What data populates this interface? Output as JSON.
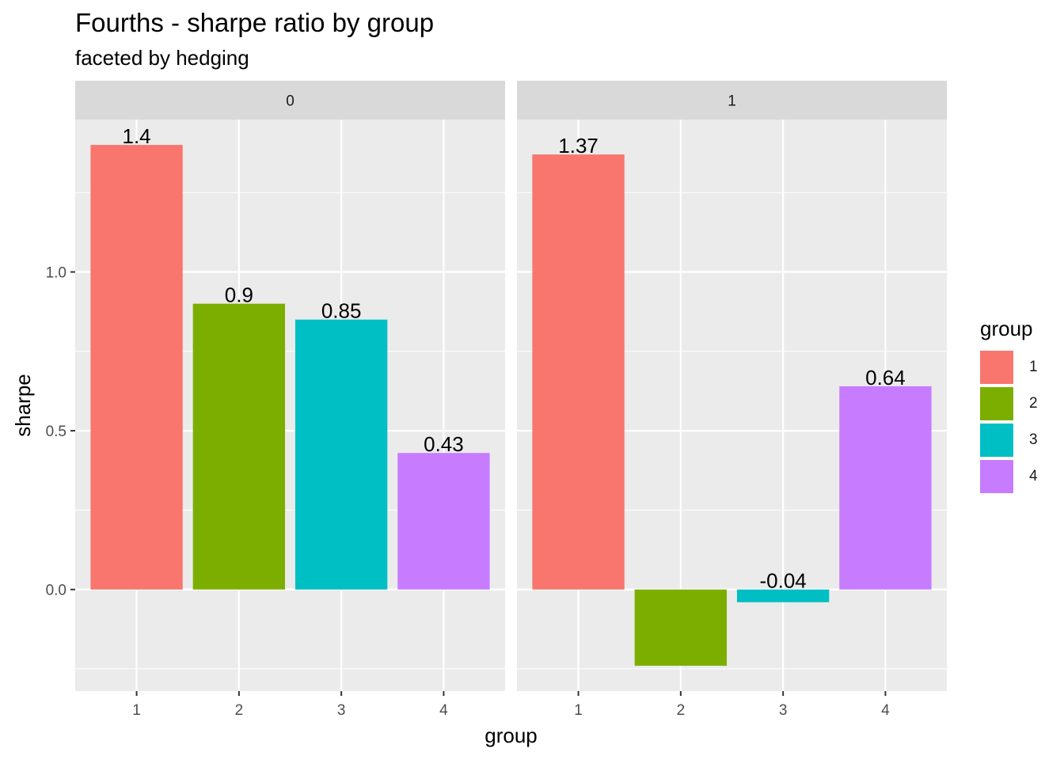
{
  "chart_data": {
    "type": "bar",
    "title": "Fourths - sharpe ratio by group",
    "subtitle": "faceted by hedging",
    "xlabel": "group",
    "ylabel": "sharpe",
    "categories": [
      "1",
      "2",
      "3",
      "4"
    ],
    "ylim": [
      -0.32,
      1.48
    ],
    "yticks": [
      0.0,
      0.5,
      1.0
    ],
    "ytick_labels": [
      "0.0",
      "0.5",
      "1.0"
    ],
    "grid": true,
    "legend": {
      "title": "group",
      "position": "right",
      "items": [
        {
          "label": "1",
          "color": "#F8766D"
        },
        {
          "label": "2",
          "color": "#7CAE00"
        },
        {
          "label": "3",
          "color": "#00BFC4"
        },
        {
          "label": "4",
          "color": "#C77CFF"
        }
      ]
    },
    "facets": [
      {
        "label": "0",
        "values": [
          1.4,
          0.9,
          0.85,
          0.43
        ],
        "data_labels": [
          "1.4",
          "0.9",
          "0.85",
          "0.43"
        ]
      },
      {
        "label": "1",
        "values": [
          1.37,
          -0.24,
          -0.04,
          0.64
        ],
        "data_labels": [
          "1.37",
          "",
          "-0.04",
          "0.64"
        ]
      }
    ]
  }
}
